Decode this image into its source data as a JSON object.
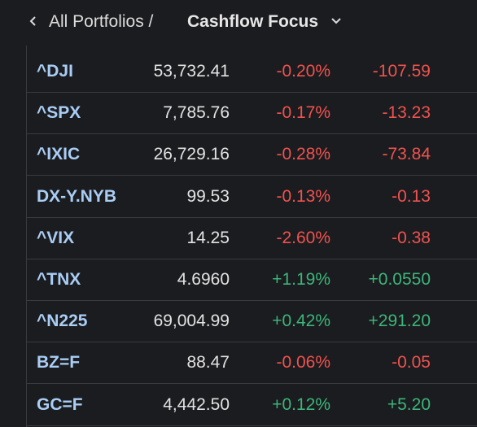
{
  "header": {
    "breadcrumb": "All Portfolios /",
    "title": "Cashflow Focus"
  },
  "table": {
    "rows": [
      [
        "^DJI",
        "53,732.41",
        "-0.20%",
        "-107.59"
      ],
      [
        "^SPX",
        "7,785.76",
        "-0.17%",
        "-13.23"
      ],
      [
        "^IXIC",
        "26,729.16",
        "-0.28%",
        "-73.84"
      ],
      [
        "DX-Y.NYB",
        "99.53",
        "-0.13%",
        "-0.13"
      ],
      [
        "^VIX",
        "14.25",
        "-2.60%",
        "-0.38"
      ],
      [
        "^TNX",
        "4.6960",
        "+1.19%",
        "+0.0550"
      ],
      [
        "^N225",
        "69,004.99",
        "+0.42%",
        "+291.20"
      ],
      [
        "BZ=F",
        "88.47",
        "-0.06%",
        "-0.05"
      ],
      [
        "GC=F",
        "4,442.50",
        "+0.12%",
        "+5.20"
      ]
    ]
  }
}
